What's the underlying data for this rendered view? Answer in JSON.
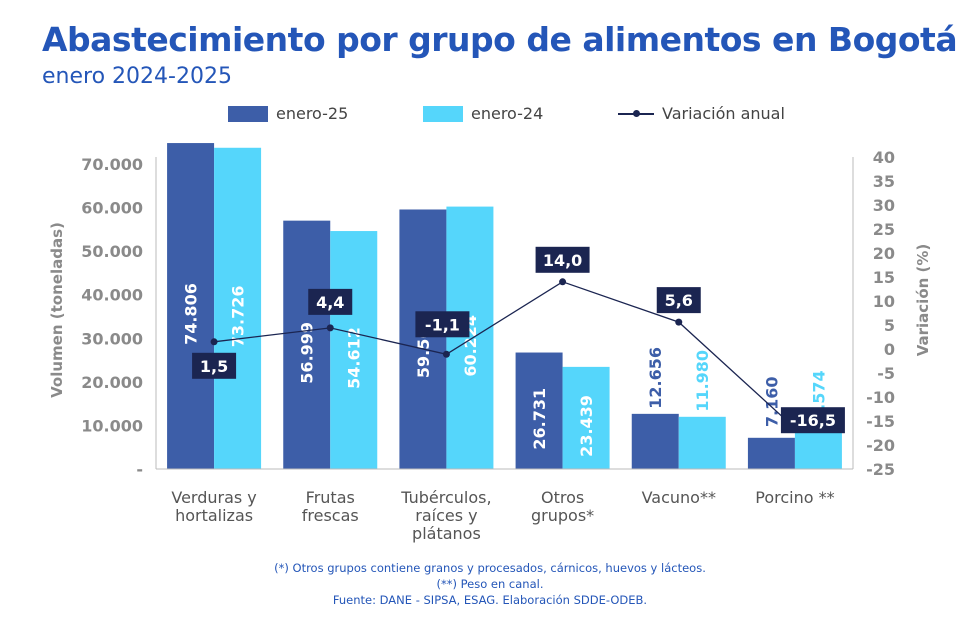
{
  "header": {
    "title": "Abastecimiento por grupo de alimentos en Bogotá",
    "subtitle": "enero 2024-2025"
  },
  "legend": {
    "series1": "enero-25",
    "series2": "enero-24",
    "line": "Variación anual"
  },
  "colors": {
    "title": "#2456b8",
    "series1": "#3d5ea8",
    "series2": "#55d6fb",
    "line": "#1b2551",
    "axis_text": "#8a8a8a"
  },
  "footnotes": [
    "(*) Otros grupos contiene granos y procesados, cárnicos, huevos y lácteos.",
    "(**) Peso en canal.",
    "Fuente: DANE - SIPSA, ESAG. Elaboración SDDE-ODEB."
  ],
  "chart_data": {
    "type": "bar",
    "categories": [
      [
        "Verduras y",
        "hortalizas"
      ],
      [
        "Frutas",
        "frescas"
      ],
      [
        "Tubérculos,",
        "raíces y",
        "plátanos"
      ],
      [
        "Otros",
        "grupos*"
      ],
      [
        "Vacuno**"
      ],
      [
        "Porcino **"
      ]
    ],
    "series": [
      {
        "name": "enero-25",
        "values": [
          74806,
          56999,
          59560,
          26731,
          12656,
          7160
        ],
        "labels": [
          "74.806",
          "56.999",
          "59.560",
          "26.731",
          "12.656",
          "7.160"
        ]
      },
      {
        "name": "enero-24",
        "values": [
          73726,
          54612,
          60224,
          23439,
          11980,
          8574
        ],
        "labels": [
          "73.726",
          "54.612",
          "60.224",
          "23.439",
          "11.980",
          "8.574"
        ]
      }
    ],
    "line_series": {
      "name": "Variación anual",
      "values": [
        1.5,
        4.4,
        -1.1,
        14.0,
        5.6,
        -16.5
      ],
      "labels": [
        "1,5",
        "4,4",
        "-1,1",
        "14,0",
        "5,6",
        "-16,5"
      ]
    },
    "ylabel": "Volumen (toneladas)",
    "y2label": "Variación (%)",
    "ylim": [
      0,
      70000
    ],
    "y_ticks": [
      0,
      10000,
      20000,
      30000,
      40000,
      50000,
      60000,
      70000
    ],
    "y_tick_labels": [
      "-",
      "10.000",
      "20.000",
      "30.000",
      "40.000",
      "50.000",
      "60.000",
      "70.000"
    ],
    "y2lim": [
      -25,
      40
    ],
    "y2_ticks": [
      -25,
      -20,
      -15,
      -10,
      -5,
      0,
      5,
      10,
      15,
      20,
      25,
      30,
      35,
      40
    ],
    "y2_tick_labels": [
      "-25",
      "-20",
      "-15",
      "-10",
      "-5",
      "0",
      "5",
      "10",
      "15",
      "20",
      "25",
      "30",
      "35",
      "40"
    ],
    "grid": false,
    "legend_position": "top"
  }
}
